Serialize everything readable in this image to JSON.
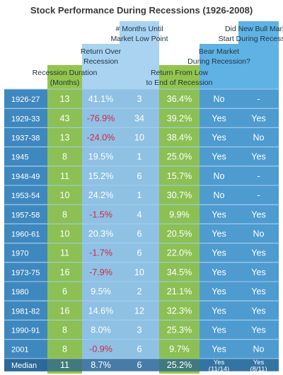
{
  "chart_data": {
    "type": "table",
    "title": "Stock Performance During Recessions (1926-2008)",
    "headers": [
      "",
      "Recession Duration (Months)",
      "Return Over Recession",
      "# Months Until Market Low Point",
      "Return From Low to End of Recession",
      "Bear Market During Recession?",
      "Did New Bull Market Start During Recession?"
    ],
    "header_lines": [
      [
        "Recession Duration",
        "(Months)"
      ],
      [
        "Return Over",
        "Recession"
      ],
      [
        "# Months Until",
        "Market Low Point"
      ],
      [
        "Return From Low",
        "to End of Recession"
      ],
      [
        "Bear Market",
        "During Recession?"
      ],
      [
        "Did New Bull Market",
        "Start During Recession?"
      ]
    ],
    "rows": [
      {
        "period": "1926-27",
        "duration": "13",
        "return": "41.1%",
        "months_to_low": "3",
        "return_from_low": "36.4%",
        "bear": "No",
        "bull": "-"
      },
      {
        "period": "1929-33",
        "duration": "43",
        "return": "-76.9%",
        "months_to_low": "34",
        "return_from_low": "39.2%",
        "bear": "Yes",
        "bull": "Yes"
      },
      {
        "period": "1937-38",
        "duration": "13",
        "return": "-24.0%",
        "months_to_low": "10",
        "return_from_low": "38.4%",
        "bear": "Yes",
        "bull": "No"
      },
      {
        "period": "1945",
        "duration": "8",
        "return": "19.5%",
        "months_to_low": "1",
        "return_from_low": "25.0%",
        "bear": "Yes",
        "bull": "Yes"
      },
      {
        "period": "1948-49",
        "duration": "11",
        "return": "15.2%",
        "months_to_low": "6",
        "return_from_low": "15.7%",
        "bear": "No",
        "bull": "-"
      },
      {
        "period": "1953-54",
        "duration": "10",
        "return": "24.2%",
        "months_to_low": "1",
        "return_from_low": "30.7%",
        "bear": "No",
        "bull": "-"
      },
      {
        "period": "1957-58",
        "duration": "8",
        "return": "-1.5%",
        "months_to_low": "4",
        "return_from_low": "9.9%",
        "bear": "Yes",
        "bull": "Yes"
      },
      {
        "period": "1960-61",
        "duration": "10",
        "return": "20.3%",
        "months_to_low": "6",
        "return_from_low": "20.5%",
        "bear": "Yes",
        "bull": "No"
      },
      {
        "period": "1970",
        "duration": "11",
        "return": "-1.7%",
        "months_to_low": "6",
        "return_from_low": "22.0%",
        "bear": "Yes",
        "bull": "Yes"
      },
      {
        "period": "1973-75",
        "duration": "16",
        "return": "-7.9%",
        "months_to_low": "10",
        "return_from_low": "34.5%",
        "bear": "Yes",
        "bull": "Yes"
      },
      {
        "period": "1980",
        "duration": "6",
        "return": "9.5%",
        "months_to_low": "2",
        "return_from_low": "21.1%",
        "bear": "Yes",
        "bull": "Yes"
      },
      {
        "period": "1981-82",
        "duration": "16",
        "return": "14.6%",
        "months_to_low": "12",
        "return_from_low": "32.3%",
        "bear": "Yes",
        "bull": "Yes"
      },
      {
        "period": "1990-91",
        "duration": "8",
        "return": "8.0%",
        "months_to_low": "3",
        "return_from_low": "25.3%",
        "bear": "Yes",
        "bull": "Yes"
      },
      {
        "period": "2001",
        "duration": "8",
        "return": "-0.9%",
        "months_to_low": "6",
        "return_from_low": "9.7%",
        "bear": "Yes",
        "bull": "No"
      }
    ],
    "median": {
      "label": "Median",
      "duration": "11",
      "return": "8.7%",
      "months_to_low": "6",
      "return_from_low": "25.2%",
      "bear": [
        "Yes",
        "(11/14)"
      ],
      "bull": [
        "Yes",
        "(8/11)"
      ]
    },
    "colors": {
      "row_band": "#3f88bf",
      "row_line": "#a5cce8",
      "median_band": "#255f8f",
      "green": "#93c54b",
      "light_blue": "#a9d3f0",
      "mid_blue": "#5fb2e4",
      "negative": "#d42a44",
      "title": "#3a3a3a",
      "header_text": "#1f3442"
    }
  }
}
